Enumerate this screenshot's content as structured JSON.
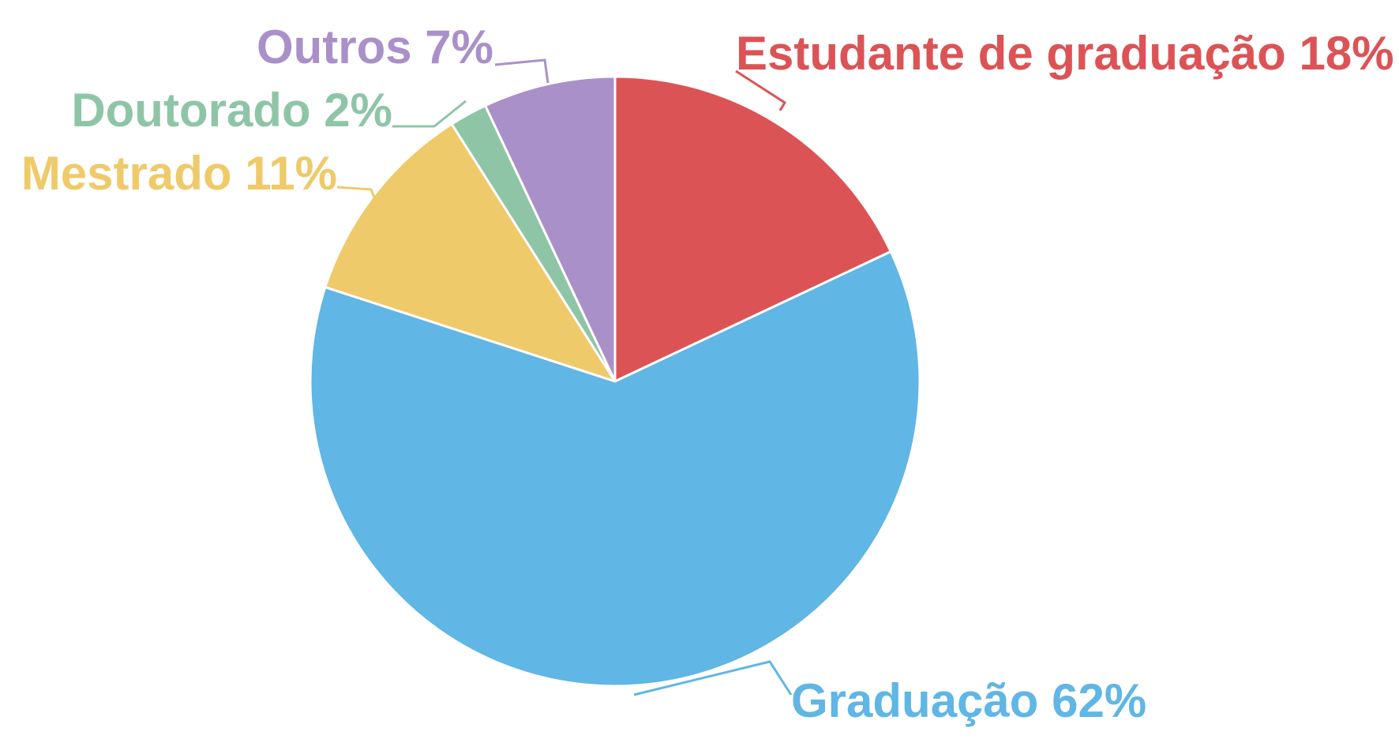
{
  "chart_data": {
    "type": "pie",
    "title": "",
    "slices": [
      {
        "name": "Estudante de graduação",
        "value": 18,
        "label": "Estudante de graduação 18%",
        "color": "#DC5356"
      },
      {
        "name": "Graduação",
        "value": 62,
        "label": "Graduação 62%",
        "color": "#60B6E4"
      },
      {
        "name": "Mestrado",
        "value": 11,
        "label": "Mestrado 11%",
        "color": "#EECA6A"
      },
      {
        "name": "Doutorado",
        "value": 2,
        "label": "Doutorado 2%",
        "color": "#8FC5A7"
      },
      {
        "name": "Outros",
        "value": 7,
        "label": "Outros 7%",
        "color": "#AA90C8"
      }
    ],
    "start": "12 o'clock",
    "direction": "clockwise",
    "legend": "none (labels beside slices with leader lines)"
  }
}
